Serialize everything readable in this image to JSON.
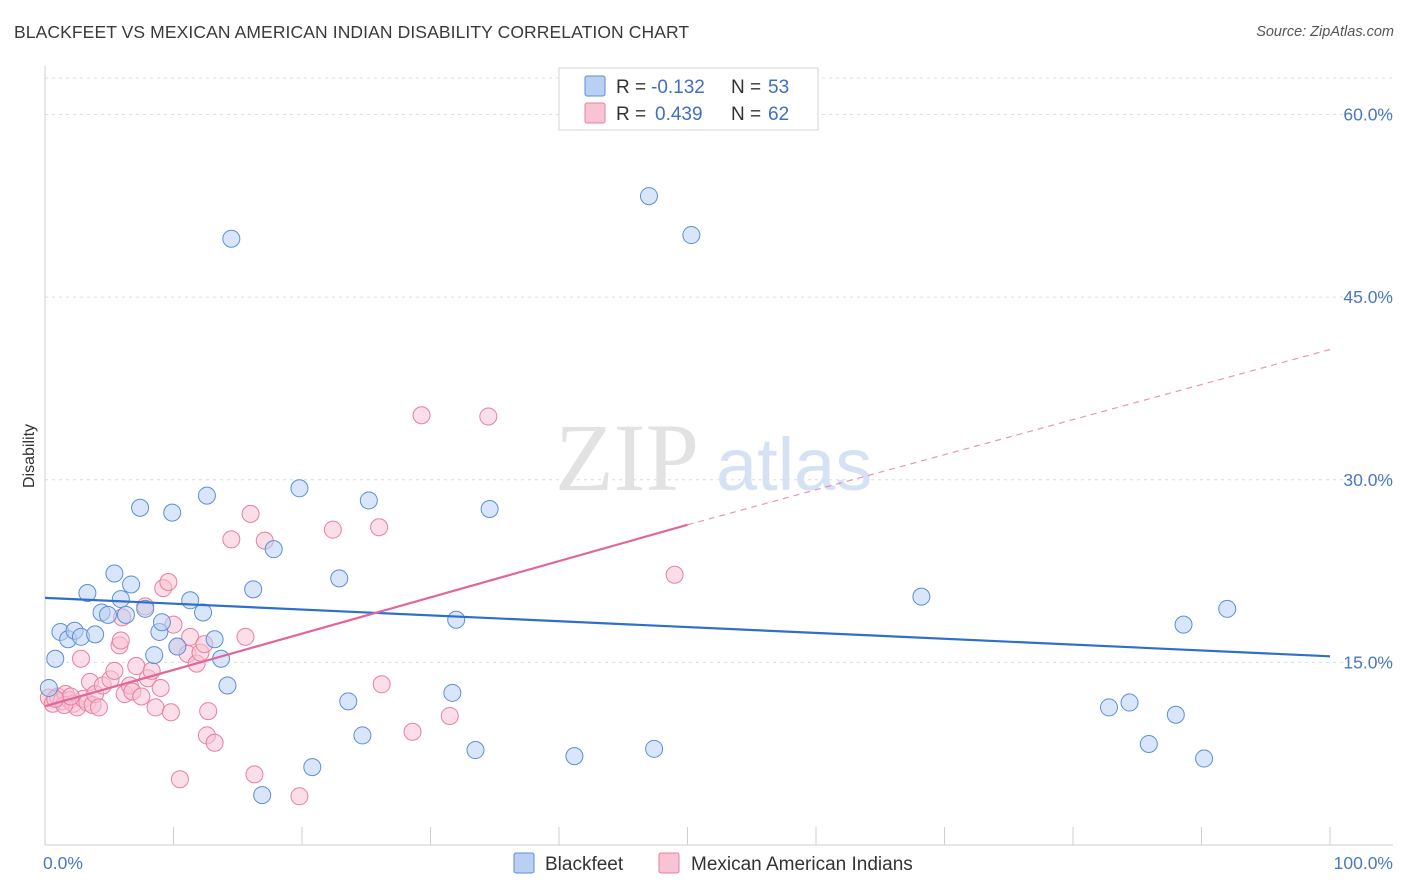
{
  "header": {
    "title": "BLACKFEET VS MEXICAN AMERICAN INDIAN DISABILITY CORRELATION CHART",
    "source": "Source: ZipAtlas.com"
  },
  "watermark": {
    "part1": "ZIP",
    "part2": "atlas"
  },
  "colors": {
    "blue_fill": "#b9d0f2",
    "blue_stroke": "#5b8fd9",
    "blue_line": "#2f6fcc",
    "pink_fill": "#f8c3d3",
    "pink_stroke": "#e87fa0",
    "pink_line": "#e0679a",
    "tick_text": "#4a78c2"
  },
  "chart_data": {
    "type": "scatter",
    "title": "BLACKFEET VS MEXICAN AMERICAN INDIAN DISABILITY CORRELATION CHART",
    "xlabel": "",
    "ylabel": "Disability",
    "xlim": [
      0,
      100
    ],
    "ylim": [
      0,
      63
    ],
    "x_tick_labels": [
      "0.0%",
      "100.0%"
    ],
    "y_ticks": [
      15,
      30,
      45,
      60
    ],
    "y_tick_labels": [
      "15.0%",
      "30.0%",
      "45.0%",
      "60.0%"
    ],
    "grid": true,
    "legend_position": "top-center",
    "legend": [
      {
        "r_label": "R =",
        "r_value": "-0.132",
        "n_label": "N =",
        "n_value": "53"
      },
      {
        "r_label": "R =",
        "r_value": "0.439",
        "n_label": "N =",
        "n_value": "62"
      }
    ],
    "series": [
      {
        "name": "Blackfeet",
        "color": "#5b8fd9",
        "trend": {
          "x": [
            0,
            100
          ],
          "y": [
            20.3,
            15.5
          ]
        },
        "points": [
          {
            "x": 0.3,
            "y": 12.9
          },
          {
            "x": 0.8,
            "y": 15.3
          },
          {
            "x": 1.2,
            "y": 17.5
          },
          {
            "x": 1.8,
            "y": 16.9
          },
          {
            "x": 2.3,
            "y": 17.6
          },
          {
            "x": 2.8,
            "y": 17.1
          },
          {
            "x": 3.3,
            "y": 20.7
          },
          {
            "x": 3.9,
            "y": 17.3
          },
          {
            "x": 4.4,
            "y": 19.1
          },
          {
            "x": 4.9,
            "y": 18.9
          },
          {
            "x": 5.4,
            "y": 22.3
          },
          {
            "x": 5.9,
            "y": 20.2
          },
          {
            "x": 6.3,
            "y": 18.9
          },
          {
            "x": 6.7,
            "y": 21.4
          },
          {
            "x": 7.4,
            "y": 27.7
          },
          {
            "x": 7.8,
            "y": 19.4
          },
          {
            "x": 8.5,
            "y": 15.6
          },
          {
            "x": 8.9,
            "y": 17.5
          },
          {
            "x": 9.1,
            "y": 18.3
          },
          {
            "x": 9.9,
            "y": 27.3
          },
          {
            "x": 10.3,
            "y": 16.3
          },
          {
            "x": 11.3,
            "y": 20.1
          },
          {
            "x": 12.3,
            "y": 19.1
          },
          {
            "x": 12.6,
            "y": 28.7
          },
          {
            "x": 13.2,
            "y": 16.9
          },
          {
            "x": 13.7,
            "y": 15.3
          },
          {
            "x": 14.2,
            "y": 13.1
          },
          {
            "x": 14.5,
            "y": 49.8
          },
          {
            "x": 16.2,
            "y": 21.0
          },
          {
            "x": 16.9,
            "y": 4.1
          },
          {
            "x": 17.8,
            "y": 24.3
          },
          {
            "x": 19.8,
            "y": 29.3
          },
          {
            "x": 20.8,
            "y": 6.4
          },
          {
            "x": 22.9,
            "y": 21.9
          },
          {
            "x": 23.6,
            "y": 11.8
          },
          {
            "x": 24.7,
            "y": 9.0
          },
          {
            "x": 25.2,
            "y": 28.3
          },
          {
            "x": 31.7,
            "y": 12.5
          },
          {
            "x": 32.0,
            "y": 18.5
          },
          {
            "x": 33.5,
            "y": 7.8
          },
          {
            "x": 34.6,
            "y": 27.6
          },
          {
            "x": 41.2,
            "y": 7.3
          },
          {
            "x": 47.0,
            "y": 53.3
          },
          {
            "x": 47.4,
            "y": 7.9
          },
          {
            "x": 50.3,
            "y": 50.1
          },
          {
            "x": 68.2,
            "y": 20.4
          },
          {
            "x": 82.8,
            "y": 11.3
          },
          {
            "x": 84.4,
            "y": 11.7
          },
          {
            "x": 85.9,
            "y": 8.3
          },
          {
            "x": 88.0,
            "y": 10.7
          },
          {
            "x": 88.6,
            "y": 18.1
          },
          {
            "x": 90.2,
            "y": 7.1
          },
          {
            "x": 92.0,
            "y": 19.4
          }
        ]
      },
      {
        "name": "Mexican American Indians",
        "color": "#e87fa0",
        "trend": {
          "x": [
            0,
            50
          ],
          "y": [
            11.4,
            26.3
          ],
          "dashed_to": {
            "x": 100,
            "y": 40.7
          }
        },
        "points": [
          {
            "x": 0.3,
            "y": 12.1
          },
          {
            "x": 0.6,
            "y": 11.6
          },
          {
            "x": 1.0,
            "y": 12.2
          },
          {
            "x": 1.3,
            "y": 11.8
          },
          {
            "x": 1.6,
            "y": 12.4
          },
          {
            "x": 1.9,
            "y": 11.9
          },
          {
            "x": 2.2,
            "y": 11.6
          },
          {
            "x": 2.5,
            "y": 11.3
          },
          {
            "x": 2.8,
            "y": 15.3
          },
          {
            "x": 3.0,
            "y": 12.0
          },
          {
            "x": 3.3,
            "y": 11.7
          },
          {
            "x": 3.5,
            "y": 13.4
          },
          {
            "x": 3.7,
            "y": 11.5
          },
          {
            "x": 3.9,
            "y": 12.4
          },
          {
            "x": 4.2,
            "y": 11.3
          },
          {
            "x": 4.5,
            "y": 13.1
          },
          {
            "x": 5.1,
            "y": 13.6
          },
          {
            "x": 5.4,
            "y": 14.3
          },
          {
            "x": 5.8,
            "y": 16.4
          },
          {
            "x": 5.9,
            "y": 16.8
          },
          {
            "x": 6.0,
            "y": 18.7
          },
          {
            "x": 6.2,
            "y": 12.4
          },
          {
            "x": 6.6,
            "y": 13.1
          },
          {
            "x": 6.8,
            "y": 12.6
          },
          {
            "x": 7.1,
            "y": 14.7
          },
          {
            "x": 7.5,
            "y": 12.2
          },
          {
            "x": 7.8,
            "y": 19.6
          },
          {
            "x": 8.0,
            "y": 13.7
          },
          {
            "x": 8.3,
            "y": 14.3
          },
          {
            "x": 8.6,
            "y": 11.3
          },
          {
            "x": 9.0,
            "y": 12.9
          },
          {
            "x": 9.2,
            "y": 21.1
          },
          {
            "x": 9.6,
            "y": 21.6
          },
          {
            "x": 10.0,
            "y": 18.1
          },
          {
            "x": 10.3,
            "y": 16.3
          },
          {
            "x": 9.8,
            "y": 10.9
          },
          {
            "x": 10.5,
            "y": 5.4
          },
          {
            "x": 11.1,
            "y": 15.7
          },
          {
            "x": 11.3,
            "y": 17.1
          },
          {
            "x": 11.8,
            "y": 14.9
          },
          {
            "x": 12.1,
            "y": 15.8
          },
          {
            "x": 12.4,
            "y": 16.5
          },
          {
            "x": 12.6,
            "y": 9.0
          },
          {
            "x": 12.7,
            "y": 11.0
          },
          {
            "x": 13.2,
            "y": 8.4
          },
          {
            "x": 14.5,
            "y": 25.1
          },
          {
            "x": 15.6,
            "y": 17.1
          },
          {
            "x": 16.0,
            "y": 27.2
          },
          {
            "x": 16.3,
            "y": 5.8
          },
          {
            "x": 17.1,
            "y": 25.0
          },
          {
            "x": 19.8,
            "y": 4.0
          },
          {
            "x": 22.4,
            "y": 25.9
          },
          {
            "x": 26.0,
            "y": 26.1
          },
          {
            "x": 26.2,
            "y": 13.2
          },
          {
            "x": 28.6,
            "y": 9.3
          },
          {
            "x": 29.3,
            "y": 35.3
          },
          {
            "x": 31.5,
            "y": 10.6
          },
          {
            "x": 34.5,
            "y": 35.2
          },
          {
            "x": 49.0,
            "y": 22.2
          },
          {
            "x": 1.5,
            "y": 11.5
          },
          {
            "x": 2.0,
            "y": 12.2
          },
          {
            "x": 0.8,
            "y": 12.0
          }
        ]
      }
    ]
  }
}
